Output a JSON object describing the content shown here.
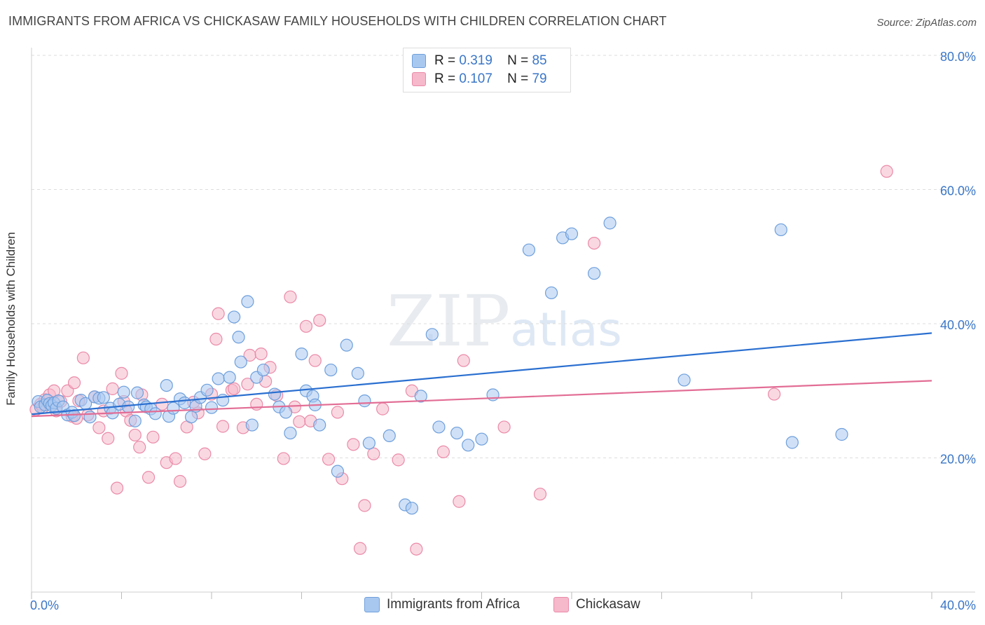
{
  "title": "IMMIGRANTS FROM AFRICA VS CHICKASAW FAMILY HOUSEHOLDS WITH CHILDREN CORRELATION CHART",
  "source": "Source: ZipAtlas.com",
  "watermark": {
    "zip": "ZIP",
    "atlas": "atlas"
  },
  "legend": {
    "rows": [
      {
        "r_label": "R =",
        "r_value": "0.319",
        "n_label": "N =",
        "n_value": "85"
      },
      {
        "r_label": "R =",
        "r_value": "0.107",
        "n_label": "N =",
        "n_value": "79"
      }
    ]
  },
  "bottom_legend": [
    "Immigrants from Africa",
    "Chickasaw"
  ],
  "colors": {
    "blue_fill": "#a9c8f0",
    "blue_stroke": "#6e9fdc",
    "blue_line": "#2a6fd0",
    "pink_fill": "#f6b8cb",
    "pink_stroke": "#ea8aa8",
    "pink_line": "#e26d95",
    "grid": "#dcdcdc",
    "tick_label": "#3a76c8"
  },
  "chart_data": {
    "type": "scatter",
    "title": "IMMIGRANTS FROM AFRICA VS CHICKASAW FAMILY HOUSEHOLDS WITH CHILDREN CORRELATION CHART",
    "xlabel": "",
    "ylabel": "Family Households with Children",
    "xlim": [
      0,
      40
    ],
    "ylim": [
      0,
      82
    ],
    "x_tick_labels": [
      "0.0%",
      "40.0%"
    ],
    "y_ticks": [
      20,
      40,
      60,
      80
    ],
    "y_tick_labels": [
      "20.0%",
      "40.0%",
      "60.0%",
      "80.0%"
    ],
    "grid": true,
    "legend_position": "top-center",
    "series": [
      {
        "name": "Immigrants from Africa",
        "r": 0.319,
        "n": 85,
        "trend": [
          [
            0,
            26.5
          ],
          [
            40,
            38.6
          ]
        ],
        "points": [
          [
            0.3,
            28.4
          ],
          [
            0.4,
            27.6
          ],
          [
            0.6,
            27.9
          ],
          [
            0.7,
            28.6
          ],
          [
            0.8,
            28.1
          ],
          [
            0.9,
            27.8
          ],
          [
            1.0,
            28.2
          ],
          [
            1.1,
            27.4
          ],
          [
            1.2,
            28.5
          ],
          [
            1.4,
            27.6
          ],
          [
            1.6,
            26.4
          ],
          [
            1.8,
            26.8
          ],
          [
            1.9,
            26.3
          ],
          [
            2.2,
            28.6
          ],
          [
            2.4,
            28.1
          ],
          [
            2.6,
            26.1
          ],
          [
            2.8,
            29.1
          ],
          [
            3.0,
            28.9
          ],
          [
            3.2,
            29.0
          ],
          [
            3.5,
            27.4
          ],
          [
            3.6,
            26.7
          ],
          [
            3.9,
            28.0
          ],
          [
            4.1,
            29.8
          ],
          [
            4.3,
            27.6
          ],
          [
            4.6,
            25.5
          ],
          [
            4.7,
            29.7
          ],
          [
            5.0,
            27.9
          ],
          [
            5.1,
            27.6
          ],
          [
            5.3,
            27.3
          ],
          [
            5.5,
            26.6
          ],
          [
            6.0,
            30.8
          ],
          [
            6.1,
            26.2
          ],
          [
            6.3,
            27.4
          ],
          [
            6.6,
            28.8
          ],
          [
            6.8,
            28.2
          ],
          [
            7.1,
            26.1
          ],
          [
            7.3,
            27.7
          ],
          [
            7.5,
            29.0
          ],
          [
            7.8,
            30.1
          ],
          [
            8.0,
            27.5
          ],
          [
            8.3,
            31.8
          ],
          [
            8.5,
            28.6
          ],
          [
            8.8,
            32.0
          ],
          [
            9.0,
            41.0
          ],
          [
            9.2,
            38.0
          ],
          [
            9.3,
            34.3
          ],
          [
            9.6,
            43.3
          ],
          [
            9.8,
            24.9
          ],
          [
            10.0,
            32.0
          ],
          [
            10.3,
            33.1
          ],
          [
            10.8,
            29.5
          ],
          [
            11.0,
            27.6
          ],
          [
            11.3,
            26.8
          ],
          [
            11.5,
            23.7
          ],
          [
            12.0,
            35.5
          ],
          [
            12.2,
            30.0
          ],
          [
            12.5,
            29.2
          ],
          [
            12.6,
            27.9
          ],
          [
            12.8,
            24.9
          ],
          [
            13.3,
            33.1
          ],
          [
            13.6,
            18.0
          ],
          [
            14.0,
            36.8
          ],
          [
            14.5,
            32.6
          ],
          [
            14.8,
            28.5
          ],
          [
            15.0,
            22.2
          ],
          [
            15.9,
            23.3
          ],
          [
            16.6,
            13.0
          ],
          [
            16.9,
            12.5
          ],
          [
            17.3,
            29.2
          ],
          [
            17.8,
            38.4
          ],
          [
            18.1,
            24.6
          ],
          [
            18.9,
            23.7
          ],
          [
            19.4,
            21.9
          ],
          [
            20.0,
            22.8
          ],
          [
            20.5,
            29.4
          ],
          [
            22.1,
            51.0
          ],
          [
            23.1,
            44.6
          ],
          [
            23.6,
            52.8
          ],
          [
            24.0,
            53.4
          ],
          [
            25.0,
            47.5
          ],
          [
            25.7,
            55.0
          ],
          [
            29.0,
            31.6
          ],
          [
            33.3,
            54.0
          ],
          [
            33.8,
            22.3
          ],
          [
            36.0,
            23.5
          ]
        ]
      },
      {
        "name": "Chickasaw",
        "r": 0.107,
        "n": 79,
        "trend": [
          [
            0,
            26.2
          ],
          [
            40,
            31.5
          ]
        ],
        "points": [
          [
            0.2,
            27.2
          ],
          [
            0.4,
            28.0
          ],
          [
            0.5,
            27.5
          ],
          [
            0.6,
            28.7
          ],
          [
            0.8,
            29.4
          ],
          [
            1.0,
            30.0
          ],
          [
            1.1,
            27.0
          ],
          [
            1.3,
            28.4
          ],
          [
            1.6,
            30.0
          ],
          [
            1.8,
            26.2
          ],
          [
            1.9,
            31.2
          ],
          [
            2.0,
            25.9
          ],
          [
            2.1,
            28.5
          ],
          [
            2.3,
            34.9
          ],
          [
            2.5,
            26.4
          ],
          [
            2.8,
            29.1
          ],
          [
            3.0,
            24.5
          ],
          [
            3.2,
            27.0
          ],
          [
            3.4,
            22.9
          ],
          [
            3.6,
            30.3
          ],
          [
            3.8,
            15.5
          ],
          [
            4.0,
            32.6
          ],
          [
            4.1,
            28.4
          ],
          [
            4.2,
            27.0
          ],
          [
            4.4,
            25.6
          ],
          [
            4.6,
            23.4
          ],
          [
            4.8,
            21.6
          ],
          [
            4.9,
            29.4
          ],
          [
            5.2,
            17.1
          ],
          [
            5.4,
            23.1
          ],
          [
            5.8,
            28.0
          ],
          [
            6.0,
            19.3
          ],
          [
            6.4,
            19.9
          ],
          [
            6.6,
            16.5
          ],
          [
            6.9,
            24.6
          ],
          [
            7.2,
            28.3
          ],
          [
            7.4,
            26.7
          ],
          [
            7.7,
            20.6
          ],
          [
            8.0,
            29.5
          ],
          [
            8.2,
            37.7
          ],
          [
            8.3,
            41.5
          ],
          [
            8.5,
            24.7
          ],
          [
            8.9,
            30.1
          ],
          [
            9.0,
            30.3
          ],
          [
            9.4,
            24.5
          ],
          [
            9.6,
            31.0
          ],
          [
            9.7,
            35.3
          ],
          [
            10.0,
            28.0
          ],
          [
            10.2,
            35.5
          ],
          [
            10.4,
            31.4
          ],
          [
            10.6,
            33.5
          ],
          [
            10.9,
            29.3
          ],
          [
            11.2,
            19.9
          ],
          [
            11.5,
            44.0
          ],
          [
            11.7,
            27.6
          ],
          [
            11.9,
            25.4
          ],
          [
            12.2,
            39.6
          ],
          [
            12.4,
            25.5
          ],
          [
            12.6,
            34.5
          ],
          [
            12.8,
            40.5
          ],
          [
            13.2,
            19.8
          ],
          [
            13.6,
            26.8
          ],
          [
            13.8,
            16.9
          ],
          [
            14.3,
            22.0
          ],
          [
            14.6,
            6.5
          ],
          [
            14.8,
            12.9
          ],
          [
            15.2,
            20.6
          ],
          [
            15.6,
            27.3
          ],
          [
            16.3,
            19.7
          ],
          [
            16.9,
            30.0
          ],
          [
            17.1,
            6.4
          ],
          [
            18.3,
            20.9
          ],
          [
            19.0,
            13.5
          ],
          [
            19.2,
            34.5
          ],
          [
            21.0,
            24.6
          ],
          [
            22.6,
            14.6
          ],
          [
            25.0,
            52.0
          ],
          [
            33.0,
            29.5
          ],
          [
            38.0,
            62.7
          ]
        ]
      }
    ]
  }
}
